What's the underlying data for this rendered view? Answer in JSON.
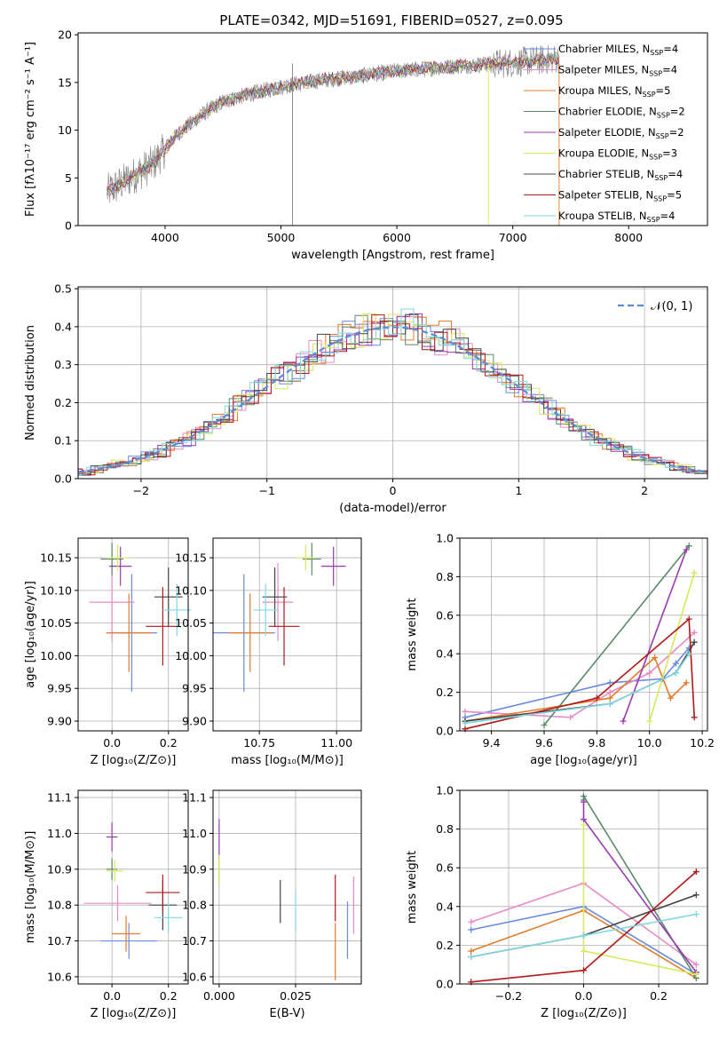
{
  "figure": {
    "title": "PLATE=0342, MJD=51691, FIBERID=0527, z=0.095"
  },
  "models": [
    {
      "name": "Chabrier MILES, N",
      "sub": "SSP",
      "tail": "=4",
      "color": "#6a8ae0"
    },
    {
      "name": "Salpeter MILES, N",
      "sub": "SSP",
      "tail": "=4",
      "color": "#e88ac8"
    },
    {
      "name": "Kroupa MILES, N",
      "sub": "SSP",
      "tail": "=5",
      "color": "#e37b2a"
    },
    {
      "name": "Chabrier ELODIE, N",
      "sub": "SSP",
      "tail": "=2",
      "color": "#5a8a6a"
    },
    {
      "name": "Salpeter ELODIE, N",
      "sub": "SSP",
      "tail": "=2",
      "color": "#9a3ab0"
    },
    {
      "name": "Kroupa ELODIE, N",
      "sub": "SSP",
      "tail": "=3",
      "color": "#d8e858"
    },
    {
      "name": "Chabrier STELIB, N",
      "sub": "SSP",
      "tail": "=4",
      "color": "#444444"
    },
    {
      "name": "Salpeter STELIB, N",
      "sub": "SSP",
      "tail": "=5",
      "color": "#b01818"
    },
    {
      "name": "Kroupa STELIB, N",
      "sub": "SSP",
      "tail": "=4",
      "color": "#80d8e0"
    }
  ],
  "chart_data": [
    {
      "id": "spectrum",
      "type": "line",
      "xlabel": "wavelength [Angstrom, rest frame]",
      "ylabel": "Flux [fλ10⁻¹⁷ erg cm⁻² s⁻¹ A⁻¹]",
      "xlim": [
        3250,
        8680
      ],
      "ylim": [
        0,
        20.2
      ],
      "xticks": [
        4000,
        5000,
        6000,
        7000,
        8000
      ],
      "yticks": [
        0,
        5,
        10,
        15,
        20
      ],
      "grid": false,
      "legend": "right",
      "continuum": {
        "x": [
          3500,
          3700,
          3900,
          4100,
          4300,
          4500,
          4800,
          5100,
          5400,
          5700,
          6000,
          6300,
          6600,
          6900,
          7200,
          7400
        ],
        "y": [
          3.5,
          5.0,
          6.5,
          9.5,
          11.5,
          13.0,
          14.0,
          14.8,
          15.3,
          15.7,
          16.2,
          16.5,
          16.8,
          17.0,
          17.3,
          17.5
        ]
      }
    },
    {
      "id": "residuals",
      "type": "line",
      "xlabel": "(data-model)/error",
      "ylabel": "Normed distribution",
      "xlim": [
        -2.5,
        2.5
      ],
      "ylim": [
        0,
        0.505
      ],
      "xticks": [
        -2,
        -1,
        0,
        1,
        2
      ],
      "yticks": [
        0,
        0.1,
        0.2,
        0.3,
        0.4,
        0.5
      ],
      "grid": true,
      "legend": "top-right",
      "curve_label": "𝒩(0, 1)",
      "curve_color": "#5b8bd6"
    },
    {
      "id": "age-vs-Z",
      "type": "scatter",
      "xlabel": "Z [log₁₀(Z/Z⊙)]",
      "ylabel": "age  [log₁₀(age/yr)]",
      "xlim": [
        -0.12,
        0.27
      ],
      "ylim": [
        9.885,
        10.18
      ],
      "xticks": [
        0.0,
        0.2
      ],
      "yticks": [
        9.9,
        9.95,
        10.0,
        10.05,
        10.1,
        10.15
      ],
      "grid": true,
      "points": [
        [
          0.07,
          10.035
        ],
        [
          0.0,
          10.082
        ],
        [
          0.06,
          10.035
        ],
        [
          0.0,
          10.148
        ],
        [
          0.03,
          10.137
        ],
        [
          0.02,
          10.15
        ],
        [
          0.2,
          10.09
        ],
        [
          0.18,
          10.045
        ],
        [
          0.23,
          10.07
        ]
      ],
      "xerr": [
        0.09,
        0.08,
        0.08,
        0.04,
        0.04,
        0.04,
        0.05,
        0.06,
        0.05
      ],
      "yerr": [
        0.09,
        0.06,
        0.06,
        0.025,
        0.03,
        0.02,
        0.045,
        0.06,
        0.04
      ]
    },
    {
      "id": "age-vs-mass",
      "type": "scatter",
      "xlabel": "mass [log₁₀(M/M⊙)]",
      "ylabel": "",
      "xlim": [
        10.6,
        11.08
      ],
      "ylim": [
        9.885,
        10.18
      ],
      "xticks": [
        10.75,
        11.0
      ],
      "yticks": [
        9.9,
        9.95,
        10.0,
        10.05,
        10.1,
        10.15
      ],
      "grid": true,
      "points": [
        [
          10.7,
          10.035
        ],
        [
          10.81,
          10.082
        ],
        [
          10.72,
          10.035
        ],
        [
          10.92,
          10.148
        ],
        [
          10.99,
          10.137
        ],
        [
          10.9,
          10.15
        ],
        [
          10.8,
          10.09
        ],
        [
          10.83,
          10.045
        ],
        [
          10.77,
          10.07
        ]
      ],
      "xerr": [
        0.1,
        0.05,
        0.07,
        0.03,
        0.04,
        0.03,
        0.04,
        0.05,
        0.04
      ],
      "yerr": [
        0.09,
        0.06,
        0.06,
        0.025,
        0.03,
        0.02,
        0.045,
        0.06,
        0.04
      ]
    },
    {
      "id": "weight-vs-age",
      "type": "line",
      "xlabel": "age  [log₁₀(age/yr)]",
      "ylabel": "mass weight",
      "xlim": [
        9.28,
        10.22
      ],
      "ylim": [
        0,
        1.0
      ],
      "xticks": [
        9.4,
        9.6,
        9.8,
        10.0,
        10.2
      ],
      "yticks": [
        0,
        0.2,
        0.4,
        0.6,
        0.8,
        1.0
      ],
      "grid": true,
      "series": [
        {
          "x": [
            9.3,
            9.85,
            10.05,
            10.1,
            10.15
          ],
          "y": [
            0.07,
            0.25,
            0.27,
            0.35,
            0.43
          ]
        },
        {
          "x": [
            9.3,
            9.7,
            9.85,
            10.0,
            10.17
          ],
          "y": [
            0.1,
            0.07,
            0.2,
            0.3,
            0.51
          ]
        },
        {
          "x": [
            9.3,
            9.85,
            10.02,
            10.08,
            10.14
          ],
          "y": [
            0.05,
            0.17,
            0.38,
            0.17,
            0.25
          ]
        },
        {
          "x": [
            9.6,
            10.15
          ],
          "y": [
            0.03,
            0.96
          ]
        },
        {
          "x": [
            9.9,
            10.14
          ],
          "y": [
            0.05,
            0.94
          ]
        },
        {
          "x": [
            10.0,
            10.17
          ],
          "y": [
            0.05,
            0.82
          ]
        },
        {
          "x": [
            9.3,
            9.85,
            10.1,
            10.17
          ],
          "y": [
            0.05,
            0.14,
            0.3,
            0.46
          ]
        },
        {
          "x": [
            9.3,
            9.8,
            10.15,
            10.17
          ],
          "y": [
            0.01,
            0.17,
            0.58,
            0.07
          ]
        },
        {
          "x": [
            9.3,
            9.85,
            10.1,
            10.15
          ],
          "y": [
            0.04,
            0.14,
            0.3,
            0.4
          ]
        }
      ]
    },
    {
      "id": "mass-vs-Z",
      "type": "scatter",
      "xlabel": "Z [log₁₀(Z/Z⊙)]",
      "ylabel": "mass [log₁₀(M/M⊙)]",
      "xlim": [
        -0.12,
        0.27
      ],
      "ylim": [
        10.58,
        11.12
      ],
      "xticks": [
        0.0,
        0.2
      ],
      "yticks": [
        10.6,
        10.7,
        10.8,
        10.9,
        11.0,
        11.1
      ],
      "grid": true,
      "points": [
        [
          0.06,
          10.7
        ],
        [
          0.02,
          10.805
        ],
        [
          0.05,
          10.72
        ],
        [
          0.0,
          10.9
        ],
        [
          0.0,
          10.99
        ],
        [
          0.01,
          10.895
        ],
        [
          0.18,
          10.8
        ],
        [
          0.18,
          10.835
        ],
        [
          0.2,
          10.765
        ]
      ],
      "xerr": [
        0.1,
        0.12,
        0.05,
        0.02,
        0.02,
        0.03,
        0.05,
        0.06,
        0.05
      ],
      "yerr": [
        0.05,
        0.05,
        0.05,
        0.03,
        0.04,
        0.03,
        0.07,
        0.05,
        0.04
      ]
    },
    {
      "id": "mass-vs-ebv",
      "type": "scatter",
      "xlabel": "E(B-V)",
      "ylabel": "",
      "xlim": [
        -0.002,
        0.0465
      ],
      "ylim": [
        10.58,
        11.12
      ],
      "xticks": [
        0.0,
        0.025
      ],
      "yticks": [
        10.6,
        10.7,
        10.8,
        10.9,
        11.0,
        11.1
      ],
      "grid": true,
      "points": [
        [
          0.042,
          10.73
        ],
        [
          0.044,
          10.8
        ],
        [
          0.038,
          10.67
        ],
        [
          0.0,
          10.9
        ],
        [
          0.0,
          10.99
        ],
        [
          0.0,
          10.9
        ],
        [
          0.02,
          10.81
        ],
        [
          0.038,
          10.82
        ],
        [
          0.025,
          10.785
        ]
      ],
      "yerr": [
        0.08,
        0.08,
        0.08,
        0.04,
        0.05,
        0.04,
        0.06,
        0.065,
        0.055
      ]
    },
    {
      "id": "weight-vs-Z",
      "type": "line",
      "xlabel": "Z [log₁₀(Z/Z⊙)]",
      "ylabel": "mass weight",
      "xlim": [
        -0.33,
        0.33
      ],
      "ylim": [
        0,
        1.0
      ],
      "xticks": [
        -0.2,
        0.0,
        0.2
      ],
      "yticks": [
        0,
        0.2,
        0.4,
        0.6,
        0.8,
        1.0
      ],
      "grid": true,
      "series": [
        {
          "x": [
            -0.3,
            0.0,
            0.3
          ],
          "y": [
            0.28,
            0.4,
            0.05
          ]
        },
        {
          "x": [
            -0.3,
            0.0,
            0.3
          ],
          "y": [
            0.32,
            0.52,
            0.1
          ]
        },
        {
          "x": [
            -0.3,
            0.0,
            0.3
          ],
          "y": [
            0.17,
            0.38,
            0.03
          ]
        },
        {
          "x": [
            0.0,
            0.0,
            0.3
          ],
          "y": [
            0.95,
            0.97,
            0.03
          ]
        },
        {
          "x": [
            0.0,
            0.0,
            0.3
          ],
          "y": [
            0.94,
            0.85,
            0.06
          ]
        },
        {
          "x": [
            0.0,
            0.0,
            0.3
          ],
          "y": [
            0.82,
            0.17,
            0.05
          ]
        },
        {
          "x": [
            -0.3,
            0.0,
            0.3
          ],
          "y": [
            0.14,
            0.25,
            0.46
          ]
        },
        {
          "x": [
            -0.3,
            0.0,
            0.3
          ],
          "y": [
            0.01,
            0.07,
            0.58
          ]
        },
        {
          "x": [
            -0.3,
            0.0,
            0.3
          ],
          "y": [
            0.14,
            0.25,
            0.36
          ]
        }
      ]
    }
  ]
}
